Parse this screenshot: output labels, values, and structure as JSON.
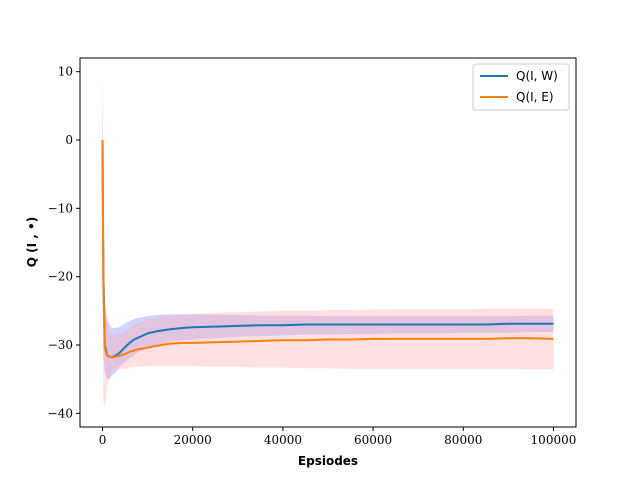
{
  "chart_data": {
    "type": "line",
    "xlabel": "Epsiodes",
    "ylabel": "Q (I , •)",
    "xlim": [
      -5000,
      105000
    ],
    "ylim": [
      -42,
      12
    ],
    "xticks": [
      0,
      20000,
      40000,
      60000,
      80000,
      100000
    ],
    "yticks": [
      10,
      0,
      -10,
      -20,
      -30,
      -40
    ],
    "ytick_labels": [
      "10",
      "0",
      "−10",
      "−20",
      "−30",
      "−40"
    ],
    "grid": false,
    "legend_position": "top-right",
    "series": [
      {
        "name": "Q(I, W)",
        "color": "#1f77b4",
        "band_color": "#8080ff",
        "x": [
          0,
          200,
          500,
          1000,
          1500,
          2000,
          3000,
          4000,
          5000,
          6000,
          7000,
          8000,
          10000,
          12000,
          15000,
          18000,
          20000,
          25000,
          30000,
          35000,
          40000,
          45000,
          50000,
          55000,
          60000,
          65000,
          70000,
          75000,
          80000,
          85000,
          90000,
          95000,
          100000
        ],
        "values": [
          0,
          -20,
          -30,
          -31.5,
          -31.7,
          -31.8,
          -31.5,
          -31.0,
          -30.3,
          -29.7,
          -29.2,
          -28.9,
          -28.3,
          -28.0,
          -27.7,
          -27.5,
          -27.4,
          -27.3,
          -27.2,
          -27.1,
          -27.1,
          -27.0,
          -27.0,
          -27.0,
          -27.0,
          -27.0,
          -27.0,
          -27.0,
          -27.0,
          -27.0,
          -26.9,
          -26.9,
          -26.9
        ],
        "lower": [
          -5,
          -32,
          -34,
          -35,
          -35,
          -34.5,
          -34,
          -33,
          -32.5,
          -32,
          -31.5,
          -31,
          -30.5,
          -30,
          -29.5,
          -29.3,
          -29.2,
          -29,
          -28.8,
          -28.7,
          -28.6,
          -28.5,
          -28.5,
          -28.4,
          -28.4,
          -28.3,
          -28.3,
          -28.3,
          -28.2,
          -28.2,
          -28.2,
          -28.1,
          -28.1
        ],
        "upper": [
          9.5,
          -8,
          -24,
          -26,
          -27,
          -27.5,
          -27.5,
          -27.3,
          -26.8,
          -26.5,
          -26.2,
          -26.0,
          -25.8,
          -25.6,
          -25.5,
          -25.5,
          -25.5,
          -25.6,
          -25.6,
          -25.7,
          -25.7,
          -25.7,
          -25.8,
          -25.8,
          -25.8,
          -25.8,
          -25.8,
          -25.8,
          -25.8,
          -25.8,
          -25.8,
          -25.7,
          -25.7
        ]
      },
      {
        "name": "Q(I, E)",
        "color": "#ff7f0e",
        "band_color": "#ffaaaa",
        "x": [
          0,
          200,
          500,
          1000,
          1500,
          2000,
          3000,
          4000,
          5000,
          6000,
          7000,
          8000,
          10000,
          12000,
          15000,
          18000,
          20000,
          25000,
          30000,
          35000,
          40000,
          45000,
          50000,
          55000,
          60000,
          65000,
          70000,
          75000,
          80000,
          85000,
          90000,
          95000,
          100000
        ],
        "values": [
          0,
          -22,
          -30.5,
          -31.5,
          -31.7,
          -31.8,
          -31.7,
          -31.5,
          -31.3,
          -31.0,
          -30.8,
          -30.6,
          -30.4,
          -30.1,
          -29.8,
          -29.7,
          -29.7,
          -29.6,
          -29.5,
          -29.4,
          -29.3,
          -29.3,
          -29.2,
          -29.2,
          -29.1,
          -29.1,
          -29.1,
          -29.1,
          -29.1,
          -29.1,
          -29.0,
          -29.0,
          -29.1
        ],
        "lower": [
          -8,
          -38,
          -39,
          -36,
          -35,
          -34,
          -33.5,
          -33.5,
          -33.5,
          -33.3,
          -33.2,
          -33.2,
          -33.1,
          -33.1,
          -33.1,
          -33.1,
          -33.1,
          -33.2,
          -33.2,
          -33.3,
          -33.3,
          -33.4,
          -33.4,
          -33.5,
          -33.5,
          -33.5,
          -33.5,
          -33.5,
          -33.5,
          -33.5,
          -33.5,
          -33.6,
          -33.6
        ],
        "upper": [
          8,
          -6,
          -25,
          -27,
          -28,
          -28.5,
          -28.5,
          -28.3,
          -28.0,
          -27.5,
          -27.0,
          -26.7,
          -26.3,
          -26.0,
          -25.8,
          -25.6,
          -25.5,
          -25.3,
          -25.2,
          -25.1,
          -25.0,
          -25.0,
          -24.9,
          -24.9,
          -24.8,
          -24.8,
          -24.8,
          -24.8,
          -24.8,
          -24.7,
          -24.7,
          -24.7,
          -24.7
        ]
      }
    ]
  }
}
